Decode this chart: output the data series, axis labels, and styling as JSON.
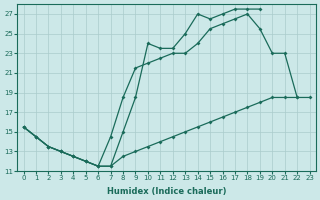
{
  "xlabel": "Humidex (Indice chaleur)",
  "background_color": "#cce8e8",
  "grid_color": "#aacccc",
  "line_color": "#1a6b5a",
  "xlim": [
    -0.5,
    23.5
  ],
  "ylim": [
    11,
    28
  ],
  "yticks": [
    11,
    13,
    15,
    17,
    19,
    21,
    23,
    25,
    27
  ],
  "xticks": [
    0,
    1,
    2,
    3,
    4,
    5,
    6,
    7,
    8,
    9,
    10,
    11,
    12,
    13,
    14,
    15,
    16,
    17,
    18,
    19,
    20,
    21,
    22,
    23
  ],
  "line1_x": [
    0,
    1,
    2,
    3,
    4,
    5,
    6,
    7,
    8,
    9,
    10,
    11,
    12,
    13,
    14,
    15,
    16,
    17,
    18,
    19
  ],
  "line1_y": [
    15.5,
    14.5,
    13.5,
    13.0,
    12.5,
    12.0,
    11.5,
    11.5,
    15.0,
    18.5,
    24.0,
    23.5,
    23.5,
    25.0,
    27.0,
    26.5,
    27.0,
    27.5,
    27.5,
    27.5
  ],
  "line2_x": [
    0,
    1,
    2,
    3,
    4,
    5,
    6,
    7,
    8,
    9,
    10,
    11,
    12,
    13,
    14,
    15,
    16,
    17,
    18,
    19,
    20,
    21,
    22
  ],
  "line2_y": [
    15.5,
    14.5,
    13.5,
    13.0,
    12.5,
    12.0,
    11.5,
    14.5,
    18.5,
    21.5,
    22.0,
    22.5,
    23.0,
    23.0,
    24.0,
    25.5,
    26.0,
    26.5,
    27.0,
    25.5,
    23.0,
    23.0,
    18.5
  ],
  "line3_x": [
    0,
    1,
    2,
    3,
    4,
    5,
    6,
    7,
    8,
    9,
    10,
    11,
    12,
    13,
    14,
    15,
    16,
    17,
    18,
    19,
    20,
    21,
    22,
    23
  ],
  "line3_y": [
    15.5,
    14.5,
    13.5,
    13.0,
    12.5,
    12.0,
    11.5,
    11.5,
    12.5,
    13.0,
    13.5,
    14.0,
    14.5,
    15.0,
    15.5,
    16.0,
    16.5,
    17.0,
    17.5,
    18.0,
    18.5,
    18.5,
    18.5,
    18.5
  ]
}
